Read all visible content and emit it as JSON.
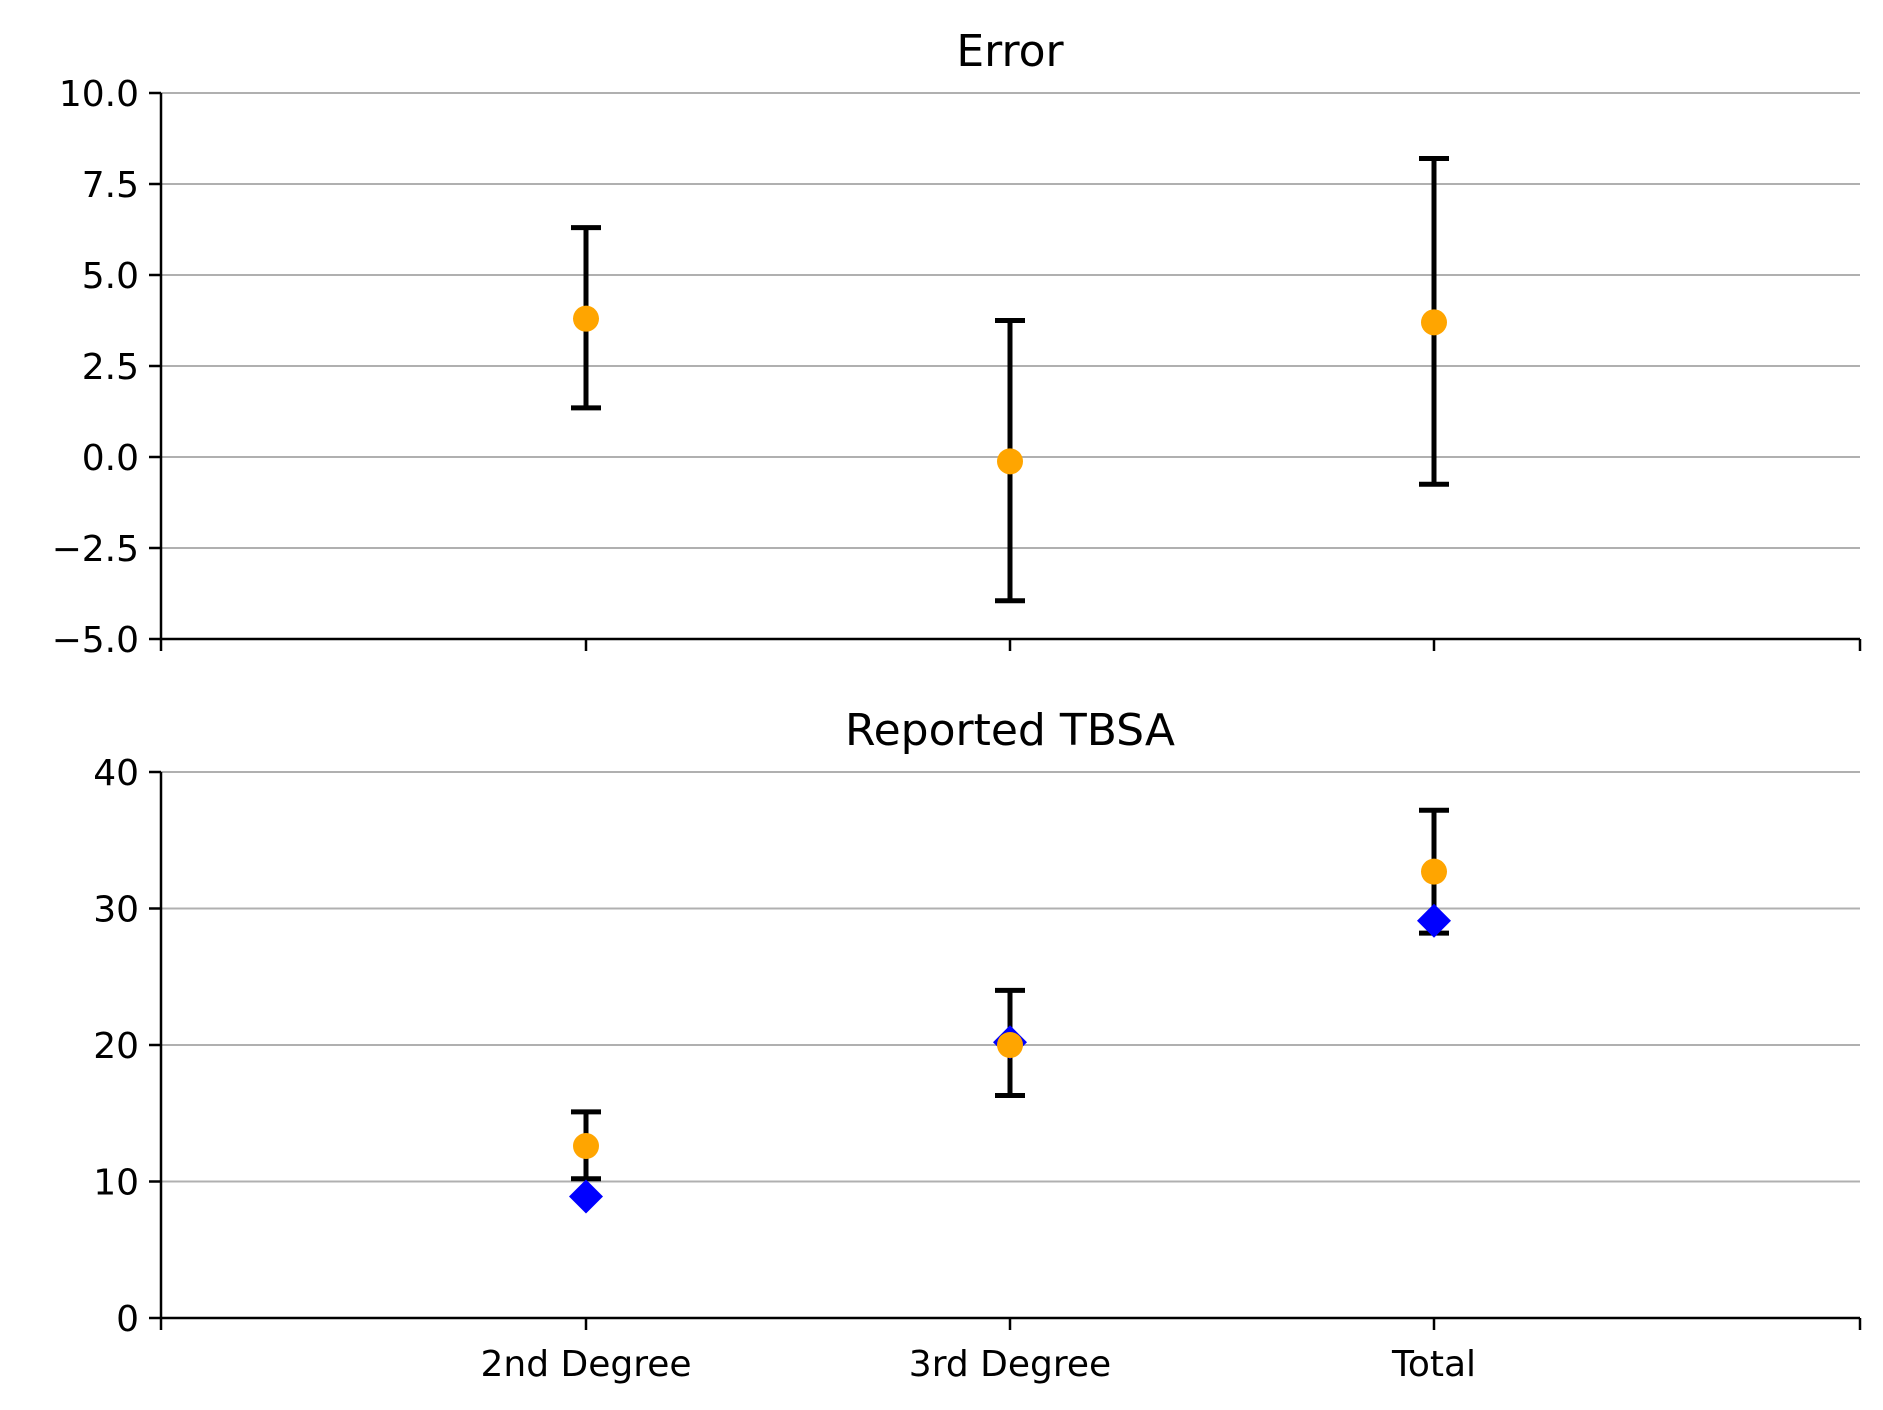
{
  "chart_data": [
    {
      "type": "scatter",
      "title": "Error",
      "categories": [
        "2nd Degree",
        "3rd Degree",
        "Total"
      ],
      "ylim": [
        -5.0,
        10.0
      ],
      "yticks": [
        -5.0,
        -2.5,
        0.0,
        2.5,
        5.0,
        7.5,
        10.0
      ],
      "ytick_labels": [
        "−5.0",
        "−2.5",
        "0.0",
        "2.5",
        "5.0",
        "7.5",
        "10.0"
      ],
      "grid": "horizontal",
      "series": [
        {
          "marker": "circle",
          "color": "#ffa500",
          "values": [
            3.8,
            -0.12,
            3.7
          ],
          "error_low": [
            1.35,
            -3.95,
            -0.75
          ],
          "error_high": [
            6.3,
            3.75,
            8.2
          ]
        }
      ]
    },
    {
      "type": "scatter",
      "title": "Reported TBSA",
      "categories": [
        "2nd Degree",
        "3rd Degree",
        "Total"
      ],
      "xtick_labels": [
        "2nd Degree",
        "3rd Degree",
        "Total"
      ],
      "ylim": [
        0,
        40
      ],
      "yticks": [
        0,
        10,
        20,
        30,
        40
      ],
      "ytick_labels": [
        "0",
        "10",
        "20",
        "30",
        "40"
      ],
      "grid": "horizontal",
      "series": [
        {
          "marker": "circle",
          "color": "#ffa500",
          "values": [
            12.6,
            20.0,
            32.7
          ],
          "error_low": [
            10.2,
            16.3,
            28.2
          ],
          "error_high": [
            15.1,
            24.0,
            37.2
          ]
        },
        {
          "marker": "diamond",
          "color": "#0000ff",
          "values": [
            8.9,
            20.2,
            29.1
          ]
        }
      ]
    }
  ]
}
